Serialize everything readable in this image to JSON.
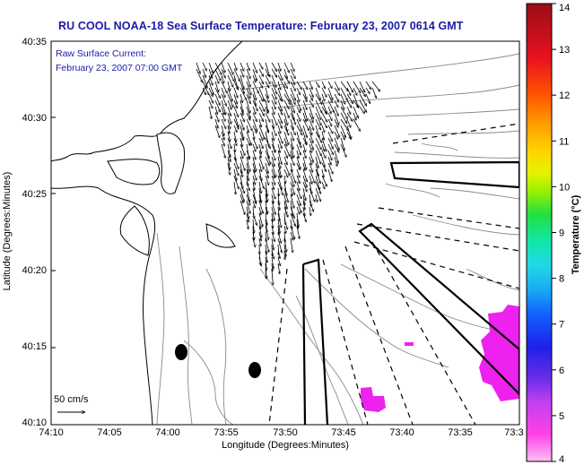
{
  "title": "RU COOL  NOAA-18  Sea Surface Temperature:  February 23, 2007 0614 GMT",
  "annotation": {
    "line1": "Raw Surface Current:",
    "line2": "February 23, 2007 07:00 GMT"
  },
  "scale_label": "50 cm/s",
  "x_axis": {
    "label": "Longitude (Degrees:Minutes)",
    "ticks": [
      "74:10",
      "74:05",
      "74:00",
      "73:55",
      "73:50",
      "73:45",
      "73:40",
      "73:35",
      "73:3"
    ]
  },
  "y_axis": {
    "label": "Latitude (Degrees:Minutes)",
    "ticks": [
      "40:35",
      "40:30",
      "40:25",
      "40:20",
      "40:15",
      "40:10"
    ]
  },
  "colorbar": {
    "label": "Temperature (°C)",
    "ticks": [
      "14",
      "13",
      "12",
      "11",
      "10",
      "9",
      "8",
      "7",
      "6",
      "5",
      "4"
    ],
    "colors": [
      "#b0101a",
      "#e8121f",
      "#ff5500",
      "#ff9900",
      "#ffd200",
      "#e6f200",
      "#9af000",
      "#22e040",
      "#12e6a8",
      "#22d8e8",
      "#1ab0f0",
      "#1060ff",
      "#2020e8",
      "#6a2ee8",
      "#c040f0",
      "#ff40e6",
      "#ffb0f0"
    ]
  },
  "colors": {
    "title": "#1a1aa8",
    "land_fill": "#ffffff",
    "sst_patch": "#ee22ee",
    "vectors": "#000000",
    "contours": "#8a8a8a"
  }
}
